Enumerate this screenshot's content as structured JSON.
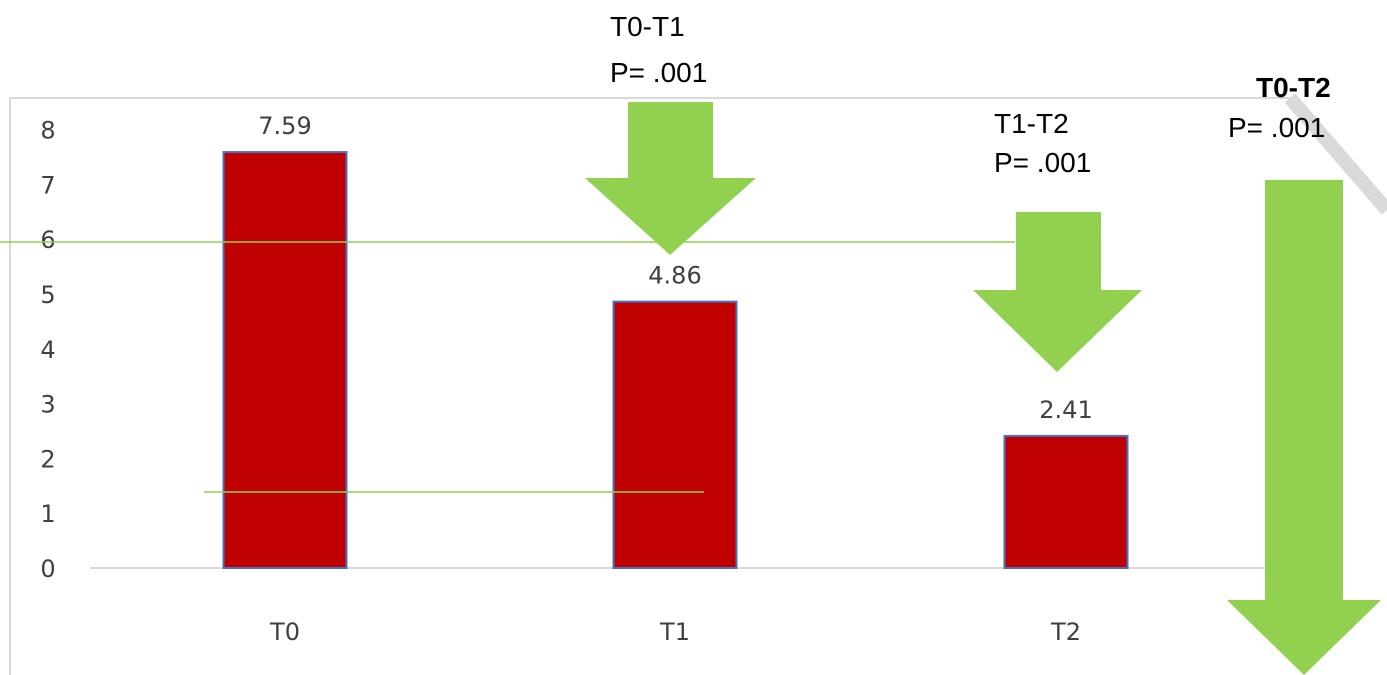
{
  "chart_data": {
    "type": "bar",
    "categories": [
      "T0",
      "T1",
      "T2"
    ],
    "values": [
      7.59,
      4.86,
      2.41
    ],
    "data_labels": [
      "7.59",
      "4.86",
      "2.41"
    ],
    "yticks": [
      0,
      1,
      2,
      3,
      4,
      5,
      6,
      7,
      8
    ],
    "ylim": [
      0,
      8
    ],
    "grid": false,
    "legend": "none",
    "annotations": [
      {
        "label": "T0-T1",
        "pvalue": "P= .001",
        "bold": false
      },
      {
        "label": "T1-T2",
        "pvalue": "P= .001",
        "bold": false
      },
      {
        "label": "T0-T2",
        "pvalue": "P= .001",
        "bold": true
      }
    ]
  },
  "colors": {
    "bar_fill": "#c00000",
    "bar_border": "#4472c4",
    "arrow": "#92d050",
    "guide_line": "#92d050",
    "axis": "#d9d9d9",
    "frame": "#d9d9d9",
    "text": "#404040"
  }
}
